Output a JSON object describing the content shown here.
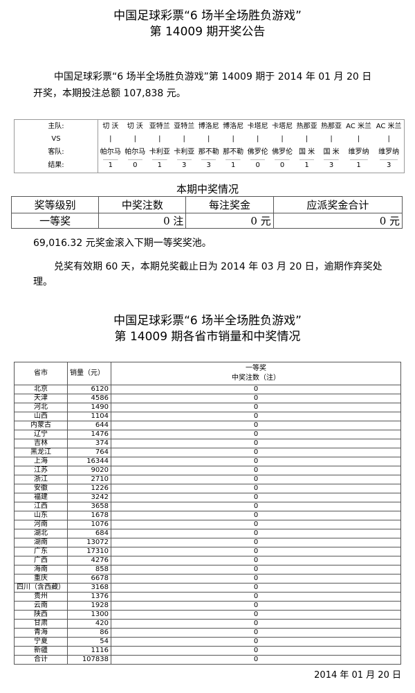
{
  "header": {
    "title1": "中国足球彩票“6 场半全场胜负游戏”",
    "title2": "第 14009 期开奖公告"
  },
  "intro": {
    "line1": "中国足球彩票“6 场半全场胜负游戏”第 14009 期于 2014 年 01 月 20 日",
    "line2": "开奖，本期投注总额 107,838 元。"
  },
  "match": {
    "home_label": "主队:",
    "vs_label": "VS",
    "away_label": "客队:",
    "result_label": "结果:",
    "home": [
      "切 沃",
      "切 沃",
      "亚特兰",
      "亚特兰",
      "博洛尼",
      "博洛尼",
      "卡塔尼",
      "卡塔尼",
      "热那亚",
      "热那亚",
      "AC 米兰",
      "AC 米兰"
    ],
    "away": [
      "帕尔马",
      "帕尔马",
      "卡利亚",
      "卡利亚",
      "那不勒",
      "那不勒",
      "佛罗伦",
      "佛罗伦",
      "国 米",
      "国 米",
      "维罗纳",
      "维罗纳"
    ],
    "results": [
      "1",
      "0",
      "1",
      "3",
      "3",
      "1",
      "0",
      "0",
      "1",
      "3",
      "1",
      "3"
    ]
  },
  "prize": {
    "title": "本期中奖情况",
    "headers": [
      "奖等级别",
      "中奖注数",
      "每注奖金",
      "应派奖金合计"
    ],
    "row": [
      "一等奖",
      "0 注",
      "0 元",
      "0 元"
    ]
  },
  "rollover": "69,016.32 元奖金滚入下期一等奖奖池。",
  "claim": {
    "line1": "兑奖有效期 60 天，本期兑奖截止日为 2014 年 03 月 20 日，逾期作弃奖处",
    "line2": "理。"
  },
  "sales": {
    "title1": "中国足球彩票“6 场半全场胜负游戏”",
    "title2": "第 14009 期各省市销量和中奖情况",
    "headers": {
      "province": "省市",
      "sales": "销量（元）",
      "prize1": "一等奖",
      "prize2": "中奖注数（注）"
    },
    "rows": [
      [
        "北京",
        "6120",
        "0"
      ],
      [
        "天津",
        "4586",
        "0"
      ],
      [
        "河北",
        "1490",
        "0"
      ],
      [
        "山西",
        "1104",
        "0"
      ],
      [
        "内蒙古",
        "644",
        "0"
      ],
      [
        "辽宁",
        "1476",
        "0"
      ],
      [
        "吉林",
        "374",
        "0"
      ],
      [
        "黑龙江",
        "764",
        "0"
      ],
      [
        "上海",
        "16344",
        "0"
      ],
      [
        "江苏",
        "9020",
        "0"
      ],
      [
        "浙江",
        "2710",
        "0"
      ],
      [
        "安徽",
        "1226",
        "0"
      ],
      [
        "福建",
        "3242",
        "0"
      ],
      [
        "江西",
        "3658",
        "0"
      ],
      [
        "山东",
        "1678",
        "0"
      ],
      [
        "河南",
        "1076",
        "0"
      ],
      [
        "湖北",
        "684",
        "0"
      ],
      [
        "湖南",
        "13072",
        "0"
      ],
      [
        "广东",
        "17310",
        "0"
      ],
      [
        "广西",
        "4276",
        "0"
      ],
      [
        "海南",
        "858",
        "0"
      ],
      [
        "重庆",
        "6678",
        "0"
      ],
      [
        "四川（含西藏）",
        "3168",
        "0"
      ],
      [
        "贵州",
        "1376",
        "0"
      ],
      [
        "云南",
        "1928",
        "0"
      ],
      [
        "陕西",
        "1300",
        "0"
      ],
      [
        "甘肃",
        "420",
        "0"
      ],
      [
        "青海",
        "86",
        "0"
      ],
      [
        "宁夏",
        "54",
        "0"
      ],
      [
        "新疆",
        "1116",
        "0"
      ],
      [
        "合计",
        "107838",
        "0"
      ]
    ]
  },
  "footer_date": "2014 年 01 月 20 日"
}
